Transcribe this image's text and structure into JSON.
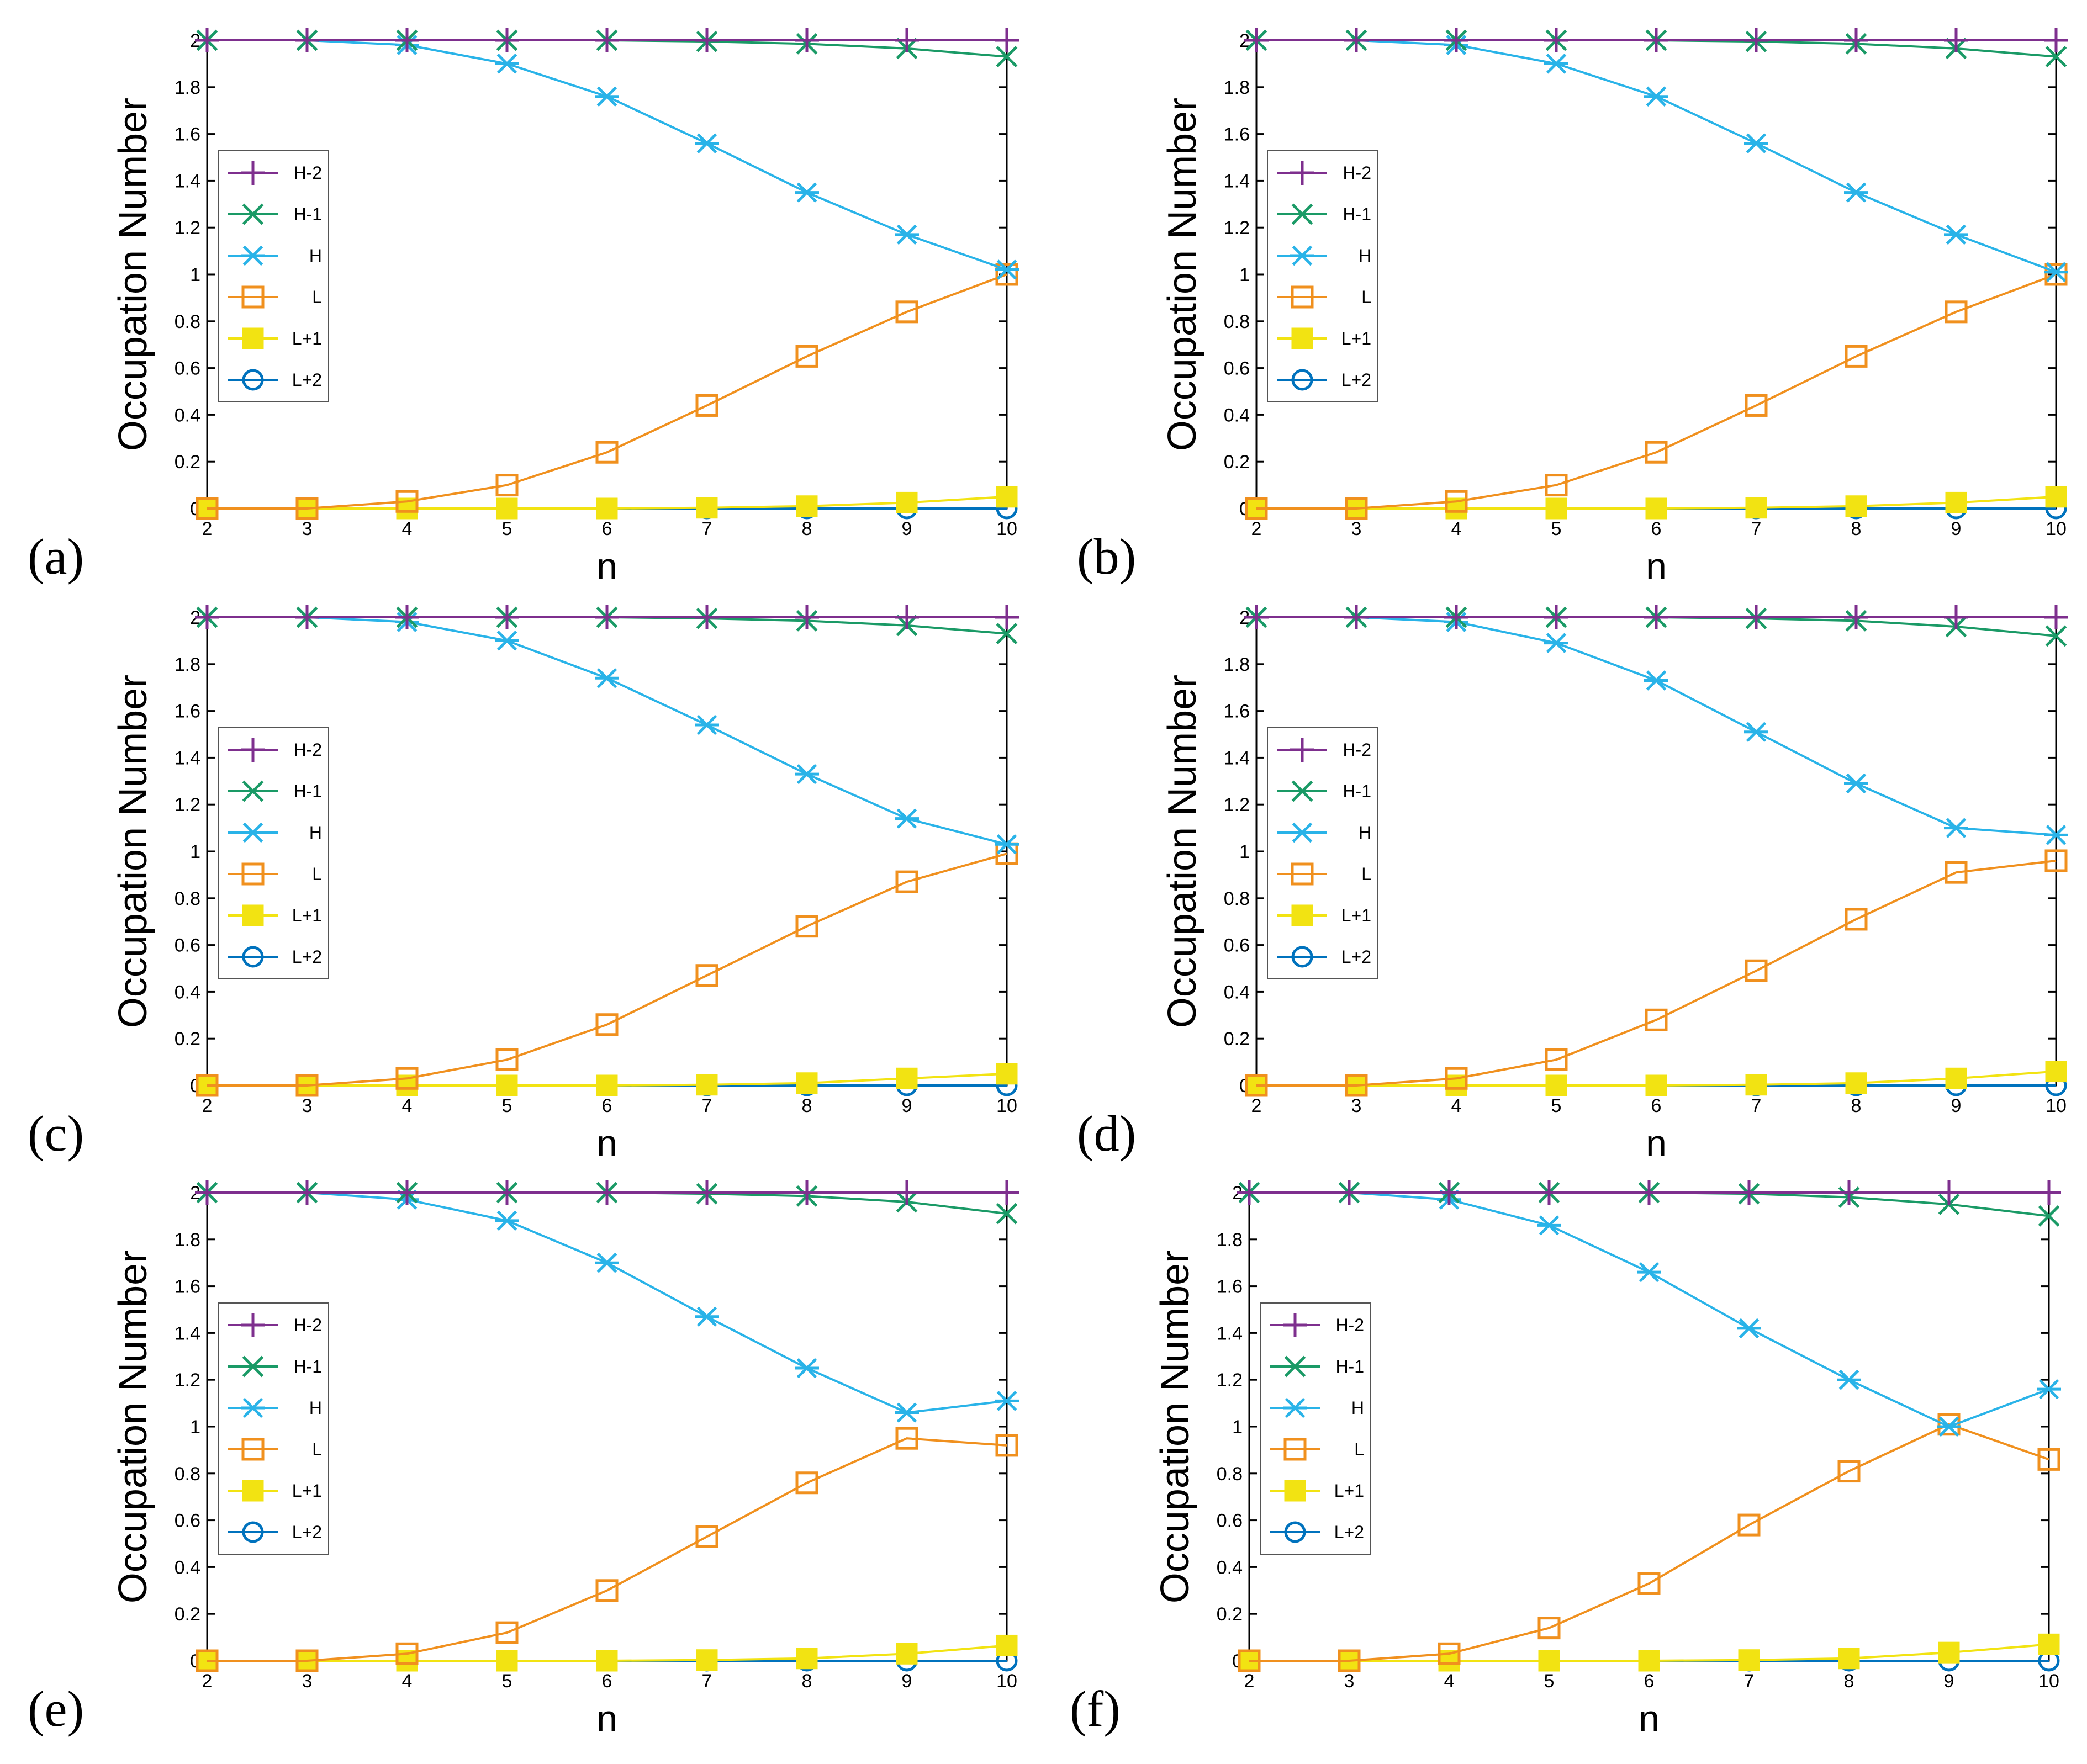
{
  "figure": {
    "ylabel": "Occupation Number",
    "xlabel": "n",
    "legend_location": "center-left",
    "legend": [
      {
        "key": "H-2",
        "label": "H-2",
        "color": "#7e2f8e",
        "marker": "plus"
      },
      {
        "key": "H-1",
        "label": "H-1",
        "color": "#1a9a66",
        "marker": "cross"
      },
      {
        "key": "H",
        "label": "H",
        "color": "#29b3e8",
        "marker": "asterisk"
      },
      {
        "key": "L",
        "label": "L",
        "color": "#f0901e",
        "marker": "square-open"
      },
      {
        "key": "L+1",
        "label": "L+1",
        "color": "#f2e312",
        "marker": "square-filled"
      },
      {
        "key": "L+2",
        "label": "L+2",
        "color": "#0072bd",
        "marker": "circle-open"
      }
    ]
  },
  "chart_data": [
    {
      "type": "line",
      "panel": "(a)",
      "x": [
        2,
        3,
        4,
        5,
        6,
        7,
        8,
        9,
        10
      ],
      "xticks": [
        "2",
        "3",
        "4",
        "5",
        "6",
        "7",
        "8",
        "9",
        "10"
      ],
      "yticks": [
        "0",
        "0.2",
        "0.4",
        "0.6",
        "0.8",
        "1",
        "1.2",
        "1.4",
        "1.6",
        "1.8",
        "2"
      ],
      "xlim": [
        2,
        10
      ],
      "ylim": [
        0,
        2
      ],
      "xlabel": "n",
      "ylabel": "Occupation Number",
      "series": [
        {
          "name": "H-2",
          "values": [
            2,
            2,
            2,
            2,
            2,
            2,
            2,
            2,
            2
          ]
        },
        {
          "name": "H-1",
          "values": [
            2,
            2,
            2,
            2,
            2,
            1.995,
            1.985,
            1.965,
            1.93
          ]
        },
        {
          "name": "H",
          "values": [
            2,
            2,
            1.98,
            1.9,
            1.76,
            1.56,
            1.35,
            1.17,
            1.02
          ]
        },
        {
          "name": "L",
          "values": [
            0,
            0,
            0.03,
            0.1,
            0.24,
            0.44,
            0.65,
            0.84,
            1.0
          ]
        },
        {
          "name": "L+1",
          "values": [
            0,
            0,
            0,
            0,
            0,
            0.003,
            0.01,
            0.025,
            0.05
          ]
        },
        {
          "name": "L+2",
          "values": [
            0,
            0,
            0,
            0,
            0,
            0,
            0,
            0,
            0
          ]
        }
      ]
    },
    {
      "type": "line",
      "panel": "(b)",
      "x": [
        2,
        3,
        4,
        5,
        6,
        7,
        8,
        9,
        10
      ],
      "xticks": [
        "2",
        "3",
        "4",
        "5",
        "6",
        "7",
        "8",
        "9",
        "10"
      ],
      "yticks": [
        "0",
        "0.2",
        "0.4",
        "0.6",
        "0.8",
        "1",
        "1.2",
        "1.4",
        "1.6",
        "1.8",
        "2"
      ],
      "xlim": [
        2,
        10
      ],
      "ylim": [
        0,
        2
      ],
      "xlabel": "n",
      "ylabel": "Occupation Number",
      "series": [
        {
          "name": "H-2",
          "values": [
            2,
            2,
            2,
            2,
            2,
            2,
            2,
            2,
            2
          ]
        },
        {
          "name": "H-1",
          "values": [
            2,
            2,
            2,
            2,
            2,
            1.995,
            1.985,
            1.965,
            1.93
          ]
        },
        {
          "name": "H",
          "values": [
            2,
            2,
            1.98,
            1.9,
            1.76,
            1.56,
            1.35,
            1.17,
            1.01
          ]
        },
        {
          "name": "L",
          "values": [
            0,
            0,
            0.03,
            0.1,
            0.24,
            0.44,
            0.65,
            0.84,
            1.0
          ]
        },
        {
          "name": "L+1",
          "values": [
            0,
            0,
            0,
            0,
            0,
            0.003,
            0.01,
            0.025,
            0.05
          ]
        },
        {
          "name": "L+2",
          "values": [
            0,
            0,
            0,
            0,
            0,
            0,
            0,
            0,
            0
          ]
        }
      ]
    },
    {
      "type": "line",
      "panel": "(c)",
      "x": [
        2,
        3,
        4,
        5,
        6,
        7,
        8,
        9,
        10
      ],
      "xticks": [
        "2",
        "3",
        "4",
        "5",
        "6",
        "7",
        "8",
        "9",
        "10"
      ],
      "yticks": [
        "0",
        "0.2",
        "0.4",
        "0.6",
        "0.8",
        "1",
        "1.2",
        "1.4",
        "1.6",
        "1.8",
        "2"
      ],
      "xlim": [
        2,
        10
      ],
      "ylim": [
        0,
        2
      ],
      "xlabel": "n",
      "ylabel": "Occupation Number",
      "series": [
        {
          "name": "H-2",
          "values": [
            2,
            2,
            2,
            2,
            2,
            2,
            2,
            2,
            2
          ]
        },
        {
          "name": "H-1",
          "values": [
            2,
            2,
            2,
            2,
            2,
            1.995,
            1.985,
            1.965,
            1.93
          ]
        },
        {
          "name": "H",
          "values": [
            2,
            2,
            1.98,
            1.9,
            1.74,
            1.54,
            1.33,
            1.14,
            1.03
          ]
        },
        {
          "name": "L",
          "values": [
            0,
            0,
            0.03,
            0.11,
            0.26,
            0.47,
            0.68,
            0.87,
            0.99
          ]
        },
        {
          "name": "L+1",
          "values": [
            0,
            0,
            0,
            0,
            0,
            0.003,
            0.01,
            0.03,
            0.05
          ]
        },
        {
          "name": "L+2",
          "values": [
            0,
            0,
            0,
            0,
            0,
            0,
            0,
            0,
            0
          ]
        }
      ]
    },
    {
      "type": "line",
      "panel": "(d)",
      "x": [
        2,
        3,
        4,
        5,
        6,
        7,
        8,
        9,
        10
      ],
      "xticks": [
        "2",
        "3",
        "4",
        "5",
        "6",
        "7",
        "8",
        "9",
        "10"
      ],
      "yticks": [
        "0",
        "0.2",
        "0.4",
        "0.6",
        "0.8",
        "1",
        "1.2",
        "1.4",
        "1.6",
        "1.8",
        "2"
      ],
      "xlim": [
        2,
        10
      ],
      "ylim": [
        0,
        2
      ],
      "xlabel": "n",
      "ylabel": "Occupation Number",
      "series": [
        {
          "name": "H-2",
          "values": [
            2,
            2,
            2,
            2,
            2,
            2,
            2,
            2,
            2
          ]
        },
        {
          "name": "H-1",
          "values": [
            2,
            2,
            2,
            2,
            2,
            1.995,
            1.985,
            1.96,
            1.92
          ]
        },
        {
          "name": "H",
          "values": [
            2,
            2,
            1.98,
            1.89,
            1.73,
            1.51,
            1.29,
            1.1,
            1.07
          ]
        },
        {
          "name": "L",
          "values": [
            0,
            0,
            0.03,
            0.11,
            0.28,
            0.49,
            0.71,
            0.91,
            0.96
          ]
        },
        {
          "name": "L+1",
          "values": [
            0,
            0,
            0,
            0,
            0,
            0.003,
            0.01,
            0.03,
            0.06
          ]
        },
        {
          "name": "L+2",
          "values": [
            0,
            0,
            0,
            0,
            0,
            0,
            0,
            0,
            0
          ]
        }
      ]
    },
    {
      "type": "line",
      "panel": "(e)",
      "x": [
        2,
        3,
        4,
        5,
        6,
        7,
        8,
        9,
        10
      ],
      "xticks": [
        "2",
        "3",
        "4",
        "5",
        "6",
        "7",
        "8",
        "9",
        "10"
      ],
      "yticks": [
        "0",
        "0.2",
        "0.4",
        "0.6",
        "0.8",
        "1",
        "1.2",
        "1.4",
        "1.6",
        "1.8",
        "2"
      ],
      "xlim": [
        2,
        10
      ],
      "ylim": [
        0,
        2
      ],
      "xlabel": "n",
      "ylabel": "Occupation Number",
      "series": [
        {
          "name": "H-2",
          "values": [
            2,
            2,
            2,
            2,
            2,
            2,
            2,
            2,
            2
          ]
        },
        {
          "name": "H-1",
          "values": [
            2,
            2,
            2,
            2,
            2,
            1.995,
            1.985,
            1.96,
            1.91
          ]
        },
        {
          "name": "H",
          "values": [
            2,
            2,
            1.97,
            1.88,
            1.7,
            1.47,
            1.25,
            1.06,
            1.11
          ]
        },
        {
          "name": "L",
          "values": [
            0,
            0,
            0.03,
            0.12,
            0.3,
            0.53,
            0.76,
            0.95,
            0.92
          ]
        },
        {
          "name": "L+1",
          "values": [
            0,
            0,
            0,
            0,
            0,
            0.003,
            0.01,
            0.03,
            0.065
          ]
        },
        {
          "name": "L+2",
          "values": [
            0,
            0,
            0,
            0,
            0,
            0,
            0,
            0,
            0
          ]
        }
      ]
    },
    {
      "type": "line",
      "panel": "(f)",
      "x": [
        2,
        3,
        4,
        5,
        6,
        7,
        8,
        9,
        10
      ],
      "xticks": [
        "2",
        "3",
        "4",
        "5",
        "6",
        "7",
        "8",
        "9",
        "10"
      ],
      "yticks": [
        "0",
        "0.2",
        "0.4",
        "0.6",
        "0.8",
        "1",
        "1.2",
        "1.4",
        "1.6",
        "1.8",
        "2"
      ],
      "xlim": [
        2,
        10
      ],
      "ylim": [
        0,
        2
      ],
      "xlabel": "n",
      "ylabel": "Occupation Number",
      "series": [
        {
          "name": "H-2",
          "values": [
            2,
            2,
            2,
            2,
            2,
            2,
            2,
            2,
            2
          ]
        },
        {
          "name": "H-1",
          "values": [
            2,
            2,
            2,
            2,
            2,
            1.995,
            1.98,
            1.95,
            1.9
          ]
        },
        {
          "name": "H",
          "values": [
            2,
            2,
            1.97,
            1.86,
            1.66,
            1.42,
            1.2,
            1.0,
            1.16
          ]
        },
        {
          "name": "L",
          "values": [
            0,
            0,
            0.03,
            0.14,
            0.33,
            0.58,
            0.81,
            1.01,
            0.86
          ]
        },
        {
          "name": "L+1",
          "values": [
            0,
            0,
            0,
            0,
            0,
            0.003,
            0.01,
            0.035,
            0.07
          ]
        },
        {
          "name": "L+2",
          "values": [
            0,
            0,
            0,
            0,
            0,
            0,
            0,
            0,
            0
          ]
        }
      ]
    }
  ]
}
